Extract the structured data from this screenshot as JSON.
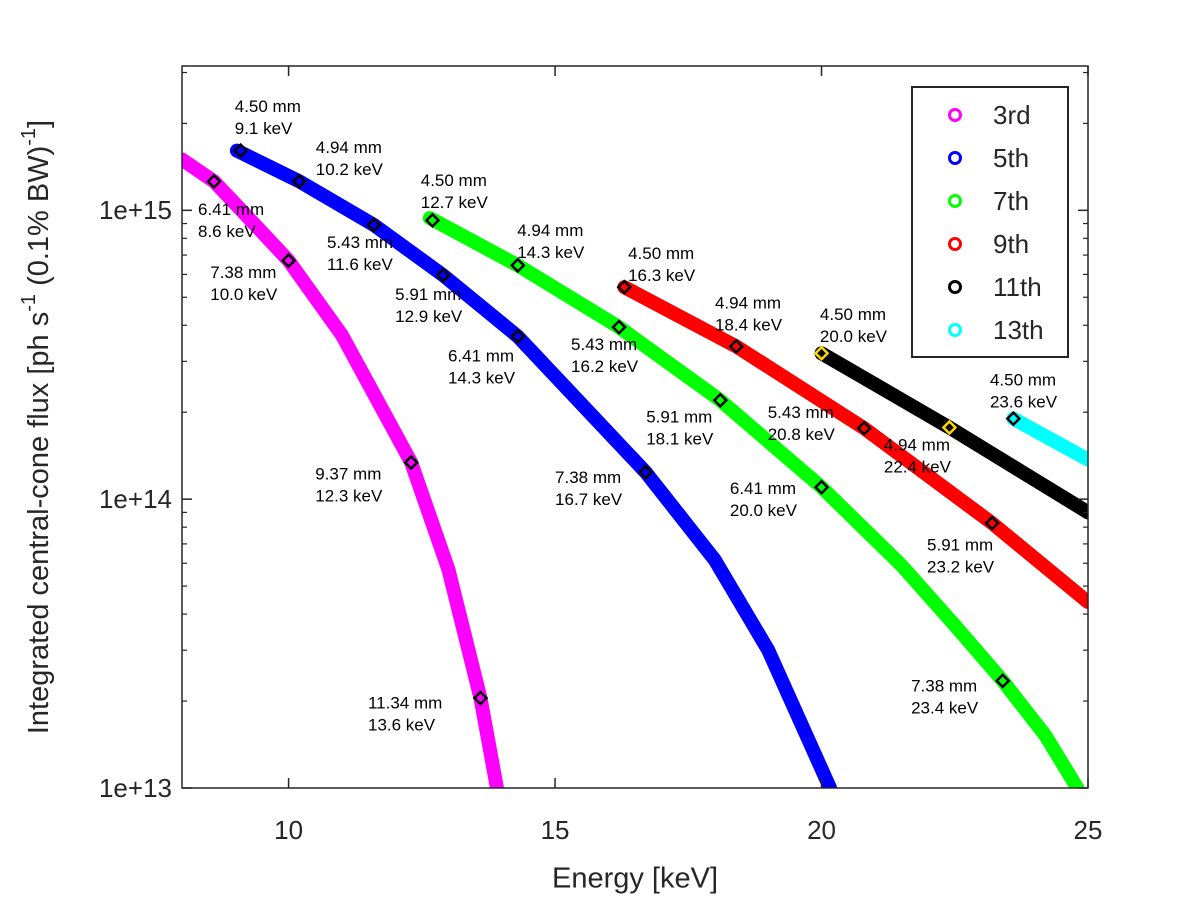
{
  "chart_data": {
    "type": "line",
    "xlabel": "Energy [keV]",
    "ylabel": [
      "Integrated central-cone flux [ph s",
      "-1",
      " (0.1% BW)",
      "-1",
      "]"
    ],
    "xlim": [
      8,
      25
    ],
    "xticks": [
      10,
      15,
      20,
      25
    ],
    "ylim": [
      10000000000000.0,
      3160000000000000.0
    ],
    "log_y": true,
    "yticks": [
      {
        "value": 10000000000000.0,
        "label": "1e+13"
      },
      {
        "value": 100000000000000.0,
        "label": "1e+14"
      },
      {
        "value": 1000000000000000.0,
        "label": "1e+15"
      }
    ],
    "minor_yticks": [
      20000000000000.0,
      30000000000000.0,
      40000000000000.0,
      50000000000000.0,
      60000000000000.0,
      70000000000000.0,
      80000000000000.0,
      90000000000000.0,
      200000000000000.0,
      300000000000000.0,
      400000000000000.0,
      500000000000000.0,
      600000000000000.0,
      700000000000000.0,
      800000000000000.0,
      900000000000000.0,
      2000000000000000.0,
      3000000000000000.0
    ],
    "grid": false,
    "legend": "northeast",
    "series": [
      {
        "name": "3rd",
        "color": "#ff00ff",
        "marker_edge": "#000000",
        "x": [
          8.0,
          8.6,
          9.3,
          10.0,
          11.0,
          12.3,
          13.0,
          13.6,
          13.91
        ],
        "values": [
          1500000000000000.0,
          1260000000000000.0,
          920000000000000.0,
          670000000000000.0,
          370000000000000.0,
          134000000000000.0,
          57000000000000.0,
          20500000000000.0,
          10000000000000.0
        ],
        "markers": {
          "x": [
            8.6,
            10.0,
            12.3,
            13.6
          ],
          "values": [
            1260000000000000.0,
            670000000000000.0,
            134000000000000.0,
            20500000000000.0
          ]
        }
      },
      {
        "name": "5th",
        "color": "#0000ff",
        "marker_edge": "#000000",
        "x": [
          9.03,
          10.2,
          11.6,
          12.9,
          14.3,
          15.5,
          16.7,
          18.0,
          19.0,
          20.16
        ],
        "values": [
          1610000000000000.0,
          1260000000000000.0,
          890000000000000.0,
          596000000000000.0,
          366000000000000.0,
          213000000000000.0,
          124000000000000.0,
          61500000000000.0,
          30000000000000.0,
          10000000000000.0
        ],
        "markers": {
          "x": [
            9.1,
            10.2,
            11.6,
            12.9,
            14.3,
            16.7
          ],
          "values": [
            1610000000000000.0,
            1260000000000000.0,
            890000000000000.0,
            596000000000000.0,
            366000000000000.0,
            124000000000000.0
          ]
        }
      },
      {
        "name": "7th",
        "color": "#00ff00",
        "marker_edge": "#000000",
        "x": [
          12.65,
          14.3,
          16.2,
          18.1,
          20.0,
          21.5,
          22.5,
          23.4,
          24.2,
          24.8
        ],
        "values": [
          940000000000000.0,
          645000000000000.0,
          394000000000000.0,
          220000000000000.0,
          110000000000000.0,
          59000000000000.0,
          36600000000000.0,
          23500000000000.0,
          15200000000000.0,
          10000000000000.0
        ],
        "markers": {
          "x": [
            12.7,
            14.3,
            16.2,
            18.1,
            20.0,
            23.4
          ],
          "values": [
            923000000000000.0,
            645000000000000.0,
            394000000000000.0,
            220000000000000.0,
            110000000000000.0,
            23500000000000.0
          ]
        }
      },
      {
        "name": "9th",
        "color": "#ff0000",
        "marker_edge": "#000000",
        "x": [
          16.3,
          18.4,
          20.8,
          23.2,
          25.0
        ],
        "values": [
          542000000000000.0,
          338000000000000.0,
          176000000000000.0,
          82600000000000.0,
          44000000000000.0
        ],
        "markers": {
          "x": [
            16.3,
            18.4,
            20.8,
            23.2
          ],
          "values": [
            542000000000000.0,
            338000000000000.0,
            176000000000000.0,
            82600000000000.0
          ]
        }
      },
      {
        "name": "11th",
        "color": "#000000",
        "marker_edge": "#ffd700",
        "x": [
          20.0,
          22.4,
          25.0
        ],
        "values": [
          320000000000000.0,
          177000000000000.0,
          90000000000000.0
        ],
        "markers": {
          "x": [
            20.0,
            22.4
          ],
          "values": [
            320000000000000.0,
            177000000000000.0
          ]
        }
      },
      {
        "name": "13th",
        "color": "#00ffff",
        "marker_edge": "#000000",
        "x": [
          23.6,
          25.0
        ],
        "values": [
          190000000000000.0,
          137000000000000.0
        ],
        "markers": {
          "x": [
            23.6
          ],
          "values": [
            190000000000000.0
          ]
        }
      }
    ],
    "annotations": [
      {
        "lines": [
          "6.41 mm",
          "8.6 keV"
        ],
        "x": 8.3,
        "y": 1000000000000000.0
      },
      {
        "lines": [
          "7.38 mm",
          "10.0 keV"
        ],
        "x": 8.53,
        "y": 605000000000000.0
      },
      {
        "lines": [
          "9.37 mm",
          "12.3 keV"
        ],
        "x": 10.5,
        "y": 121000000000000.0
      },
      {
        "lines": [
          "11.34 mm",
          "13.6 keV"
        ],
        "x": 11.49,
        "y": 19500000000000.0
      },
      {
        "lines": [
          "4.50 mm",
          "9.1 keV"
        ],
        "x": 8.99,
        "y": 2270000000000000.0
      },
      {
        "lines": [
          "4.94 mm",
          "10.2 keV"
        ],
        "x": 10.51,
        "y": 1640000000000000.0
      },
      {
        "lines": [
          "5.43 mm",
          "11.6 keV"
        ],
        "x": 10.72,
        "y": 769000000000000.0
      },
      {
        "lines": [
          "5.91 mm",
          "12.9 keV"
        ],
        "x": 12.0,
        "y": 508000000000000.0
      },
      {
        "lines": [
          "6.41 mm",
          "14.3 keV"
        ],
        "x": 12.99,
        "y": 310000000000000.0
      },
      {
        "lines": [
          "7.38 mm",
          "16.7 keV"
        ],
        "x": 15.0,
        "y": 118000000000000.0
      },
      {
        "lines": [
          "4.50 mm",
          "12.7 keV"
        ],
        "x": 12.48,
        "y": 1260000000000000.0
      },
      {
        "lines": [
          "4.94 mm",
          "14.3 keV"
        ],
        "x": 14.29,
        "y": 846000000000000.0
      },
      {
        "lines": [
          "5.43 mm",
          "16.2 keV"
        ],
        "x": 15.3,
        "y": 341000000000000.0
      },
      {
        "lines": [
          "5.91 mm",
          "18.1 keV"
        ],
        "x": 16.71,
        "y": 191000000000000.0
      },
      {
        "lines": [
          "6.41 mm",
          "20.0 keV"
        ],
        "x": 18.28,
        "y": 108000000000000.0
      },
      {
        "lines": [
          "7.38 mm",
          "23.4 keV"
        ],
        "x": 21.68,
        "y": 22400000000000.0
      },
      {
        "lines": [
          "4.50 mm",
          "16.3 keV"
        ],
        "x": 16.37,
        "y": 704000000000000.0
      },
      {
        "lines": [
          "4.94 mm",
          "18.4 keV"
        ],
        "x": 18.0,
        "y": 473000000000000.0
      },
      {
        "lines": [
          "5.43 mm",
          "20.8 keV"
        ],
        "x": 18.99,
        "y": 198000000000000.0
      },
      {
        "lines": [
          "5.91 mm",
          "23.2 keV"
        ],
        "x": 21.98,
        "y": 68800000000000.0
      },
      {
        "lines": [
          "4.50 mm",
          "20.0 keV"
        ],
        "x": 19.97,
        "y": 433000000000000.0
      },
      {
        "lines": [
          "4.94 mm",
          "22.4 keV"
        ],
        "x": 21.17,
        "y": 153000000000000.0
      },
      {
        "lines": [
          "4.50 mm",
          "23.6 keV"
        ],
        "x": 23.16,
        "y": 256000000000000.0
      }
    ]
  }
}
